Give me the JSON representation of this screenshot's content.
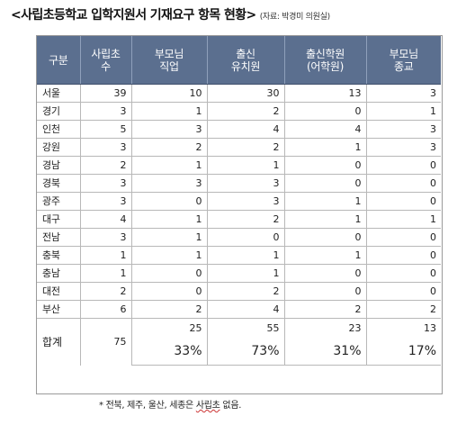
{
  "title": {
    "main": "<사립초등학교 입학지원서 기재요구 항목 현황>",
    "source": "(자료: 박경미 의원실)"
  },
  "table": {
    "headers": [
      [
        "구분"
      ],
      [
        "사립초",
        "수"
      ],
      [
        "부모님",
        "직업"
      ],
      [
        "출신",
        "유치원"
      ],
      [
        "출신학원",
        "(어학원)"
      ],
      [
        "부모님",
        "종교"
      ]
    ],
    "rows": [
      {
        "region": "서울",
        "values": [
          "39",
          "10",
          "30",
          "13",
          "3"
        ]
      },
      {
        "region": "경기",
        "values": [
          "3",
          "1",
          "2",
          "0",
          "1"
        ]
      },
      {
        "region": "인천",
        "values": [
          "5",
          "3",
          "4",
          "4",
          "3"
        ]
      },
      {
        "region": "강원",
        "values": [
          "3",
          "2",
          "2",
          "1",
          "3"
        ]
      },
      {
        "region": "경남",
        "values": [
          "2",
          "1",
          "1",
          "0",
          "0"
        ]
      },
      {
        "region": "경북",
        "values": [
          "3",
          "3",
          "3",
          "0",
          "0"
        ]
      },
      {
        "region": "광주",
        "values": [
          "3",
          "0",
          "3",
          "1",
          "0"
        ]
      },
      {
        "region": "대구",
        "values": [
          "4",
          "1",
          "2",
          "1",
          "1"
        ]
      },
      {
        "region": "전남",
        "values": [
          "3",
          "1",
          "0",
          "0",
          "0"
        ]
      },
      {
        "region": "충북",
        "values": [
          "1",
          "1",
          "1",
          "1",
          "0"
        ]
      },
      {
        "region": "충남",
        "values": [
          "1",
          "0",
          "1",
          "0",
          "0"
        ]
      },
      {
        "region": "대전",
        "values": [
          "2",
          "0",
          "2",
          "0",
          "0"
        ]
      },
      {
        "region": "부산",
        "values": [
          "6",
          "2",
          "4",
          "2",
          "2"
        ]
      }
    ],
    "total": {
      "label": "합계",
      "schools": "75",
      "counts": [
        "25",
        "55",
        "23",
        "13"
      ],
      "percents": [
        "33%",
        "73%",
        "31%",
        "17%"
      ]
    }
  },
  "footnote": {
    "prefix": "* 전북, 제주, 울산, 세종은 ",
    "underlined": "사립초",
    "suffix": " 없음."
  },
  "colors": {
    "header_bg": "#5b6f8f",
    "header_text": "#ffffff"
  }
}
